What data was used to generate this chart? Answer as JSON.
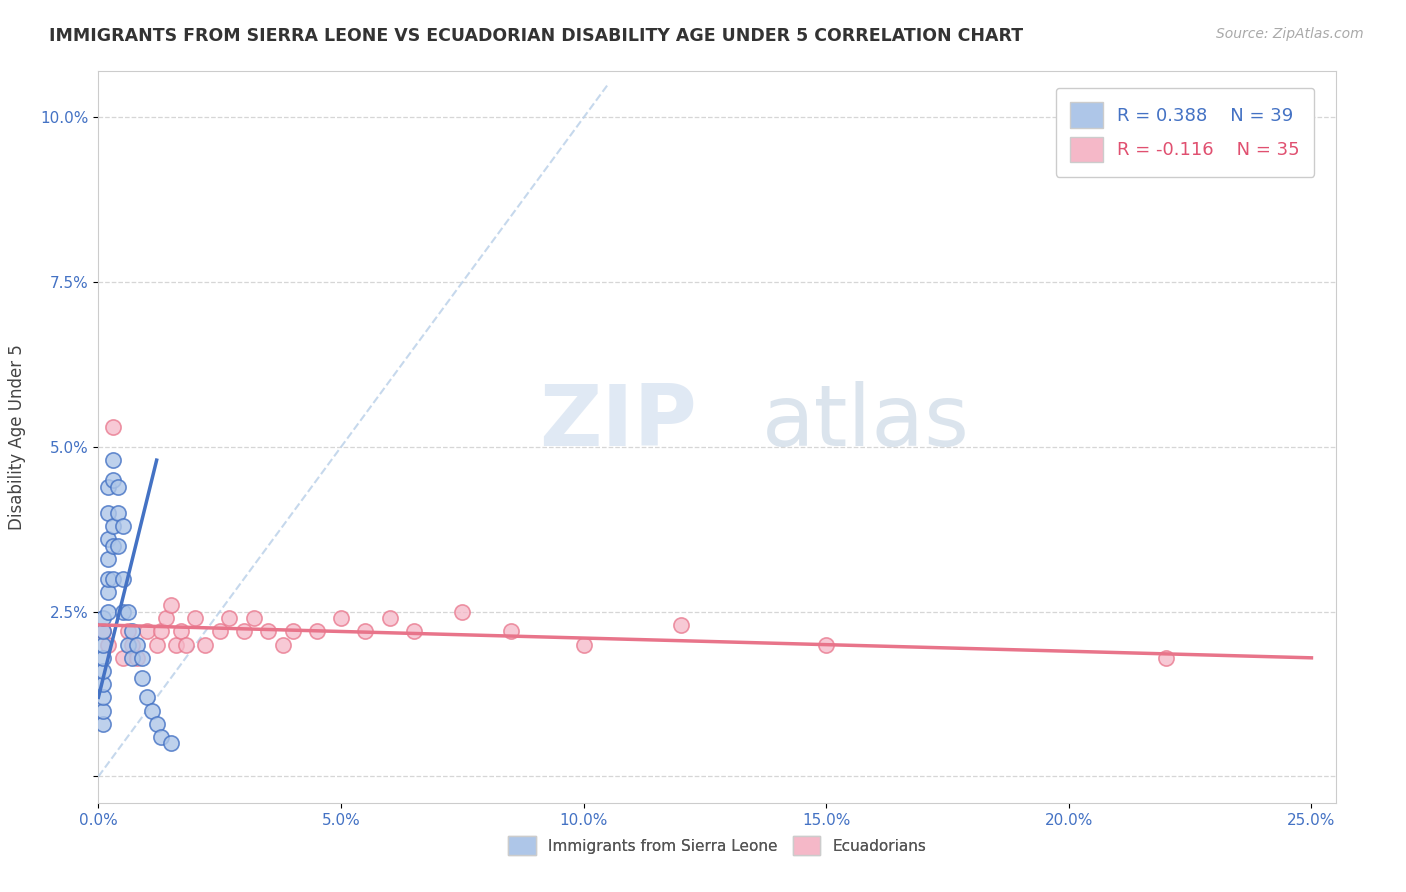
{
  "title": "IMMIGRANTS FROM SIERRA LEONE VS ECUADORIAN DISABILITY AGE UNDER 5 CORRELATION CHART",
  "source_text": "Source: ZipAtlas.com",
  "ylabel": "Disability Age Under 5",
  "xmin": 0.0,
  "xmax": 0.255,
  "ymin": -0.004,
  "ymax": 0.107,
  "ytick_labels": [
    "",
    "2.5%",
    "5.0%",
    "7.5%",
    "10.0%"
  ],
  "ytick_values": [
    0.0,
    0.025,
    0.05,
    0.075,
    0.1
  ],
  "xtick_values": [
    0.0,
    0.05,
    0.1,
    0.15,
    0.2,
    0.25
  ],
  "xtick_labels": [
    "0.0%",
    "5.0%",
    "10.0%",
    "15.0%",
    "20.0%",
    "25.0%"
  ],
  "legend_r1": "R = 0.388",
  "legend_n1": "N = 39",
  "legend_r2": "R = -0.116",
  "legend_n2": "N = 35",
  "color_blue": "#aec6e8",
  "color_pink": "#f5b8c8",
  "line_blue": "#4472c4",
  "line_pink": "#e8748a",
  "line_dashed_color": "#b8cfe8",
  "watermark_zip": "ZIP",
  "watermark_atlas": "atlas",
  "sierra_leone_x": [
    0.001,
    0.001,
    0.001,
    0.001,
    0.001,
    0.001,
    0.001,
    0.001,
    0.001,
    0.002,
    0.002,
    0.002,
    0.002,
    0.002,
    0.002,
    0.002,
    0.003,
    0.003,
    0.003,
    0.003,
    0.003,
    0.004,
    0.004,
    0.004,
    0.005,
    0.005,
    0.005,
    0.006,
    0.006,
    0.007,
    0.007,
    0.008,
    0.009,
    0.009,
    0.01,
    0.011,
    0.012,
    0.013,
    0.015
  ],
  "sierra_leone_y": [
    0.008,
    0.01,
    0.012,
    0.014,
    0.016,
    0.018,
    0.02,
    0.022,
    0.024,
    0.025,
    0.028,
    0.03,
    0.033,
    0.036,
    0.04,
    0.044,
    0.03,
    0.035,
    0.038,
    0.045,
    0.048,
    0.035,
    0.04,
    0.044,
    0.025,
    0.03,
    0.038,
    0.02,
    0.025,
    0.018,
    0.022,
    0.02,
    0.015,
    0.018,
    0.012,
    0.01,
    0.008,
    0.006,
    0.005
  ],
  "ecuadorian_x": [
    0.001,
    0.002,
    0.003,
    0.005,
    0.006,
    0.007,
    0.008,
    0.01,
    0.012,
    0.013,
    0.014,
    0.015,
    0.016,
    0.017,
    0.018,
    0.02,
    0.022,
    0.025,
    0.027,
    0.03,
    0.032,
    0.035,
    0.038,
    0.04,
    0.045,
    0.05,
    0.055,
    0.06,
    0.065,
    0.075,
    0.085,
    0.1,
    0.12,
    0.15,
    0.22
  ],
  "ecuadorian_y": [
    0.022,
    0.02,
    0.053,
    0.018,
    0.022,
    0.02,
    0.018,
    0.022,
    0.02,
    0.022,
    0.024,
    0.026,
    0.02,
    0.022,
    0.02,
    0.024,
    0.02,
    0.022,
    0.024,
    0.022,
    0.024,
    0.022,
    0.02,
    0.022,
    0.022,
    0.024,
    0.022,
    0.024,
    0.022,
    0.025,
    0.022,
    0.02,
    0.023,
    0.02,
    0.018
  ],
  "sl_line_x": [
    0.0,
    0.012
  ],
  "sl_line_y": [
    0.012,
    0.048
  ],
  "ec_line_x": [
    0.0,
    0.25
  ],
  "ec_line_y": [
    0.023,
    0.018
  ]
}
